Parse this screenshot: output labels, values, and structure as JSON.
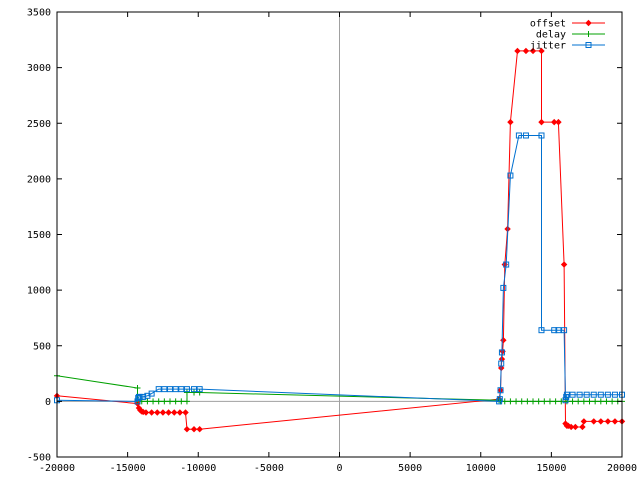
{
  "chart_data": {
    "type": "line",
    "title": "",
    "xlabel": "",
    "ylabel": "",
    "xlim": [
      -20000,
      20000
    ],
    "ylim": [
      -500,
      3500
    ],
    "xticks": [
      -20000,
      -15000,
      -10000,
      -5000,
      0,
      5000,
      10000,
      15000,
      20000
    ],
    "yticks": [
      -500,
      0,
      500,
      1000,
      1500,
      2000,
      2500,
      3000,
      3500
    ],
    "grid": false,
    "zero_lines": true,
    "legend_position": "top-right",
    "series": [
      {
        "name": "offset",
        "color": "#ff0000",
        "marker": "diamond",
        "points": [
          [
            -20000,
            50
          ],
          [
            -14300,
            -20
          ],
          [
            -14200,
            -60
          ],
          [
            -14100,
            -80
          ],
          [
            -14000,
            -90
          ],
          [
            -13900,
            -95
          ],
          [
            -13700,
            -100
          ],
          [
            -13300,
            -100
          ],
          [
            -12900,
            -100
          ],
          [
            -12500,
            -100
          ],
          [
            -12100,
            -100
          ],
          [
            -11700,
            -100
          ],
          [
            -11300,
            -100
          ],
          [
            -10900,
            -100
          ],
          [
            -10800,
            -250
          ],
          [
            -10300,
            -250
          ],
          [
            -9900,
            -250
          ],
          [
            11300,
            20
          ],
          [
            11400,
            100
          ],
          [
            11450,
            300
          ],
          [
            11500,
            380
          ],
          [
            11550,
            450
          ],
          [
            11600,
            550
          ],
          [
            11700,
            1230
          ],
          [
            11900,
            1550
          ],
          [
            12100,
            2510
          ],
          [
            12600,
            3150
          ],
          [
            13200,
            3150
          ],
          [
            13700,
            3150
          ],
          [
            14300,
            3150
          ],
          [
            14300,
            2510
          ],
          [
            15200,
            2510
          ],
          [
            15500,
            2510
          ],
          [
            15900,
            1230
          ],
          [
            16000,
            -200
          ],
          [
            16100,
            -220
          ],
          [
            16200,
            -220
          ],
          [
            16400,
            -230
          ],
          [
            16700,
            -230
          ],
          [
            17200,
            -230
          ],
          [
            17300,
            -180
          ],
          [
            18000,
            -180
          ],
          [
            18500,
            -180
          ],
          [
            19000,
            -180
          ],
          [
            19500,
            -180
          ],
          [
            20000,
            -180
          ]
        ]
      },
      {
        "name": "delay",
        "color": "#00a000",
        "marker": "plus",
        "points": [
          [
            -20000,
            230
          ],
          [
            -14300,
            120
          ],
          [
            -14300,
            10
          ],
          [
            -14000,
            0
          ],
          [
            -13600,
            0
          ],
          [
            -13200,
            0
          ],
          [
            -12800,
            0
          ],
          [
            -12400,
            0
          ],
          [
            -12000,
            0
          ],
          [
            -11600,
            0
          ],
          [
            -11200,
            0
          ],
          [
            -10800,
            0
          ],
          [
            -10800,
            80
          ],
          [
            -10300,
            80
          ],
          [
            -9900,
            80
          ],
          [
            11300,
            10
          ],
          [
            11400,
            0
          ],
          [
            11700,
            0
          ],
          [
            12100,
            0
          ],
          [
            12500,
            0
          ],
          [
            12900,
            0
          ],
          [
            13300,
            0
          ],
          [
            13700,
            0
          ],
          [
            14100,
            0
          ],
          [
            14500,
            0
          ],
          [
            14900,
            0
          ],
          [
            15300,
            0
          ],
          [
            15700,
            0
          ],
          [
            16100,
            0
          ],
          [
            16500,
            0
          ],
          [
            16900,
            0
          ],
          [
            17300,
            0
          ],
          [
            17700,
            0
          ],
          [
            18100,
            0
          ],
          [
            18500,
            0
          ],
          [
            18900,
            0
          ],
          [
            19300,
            0
          ],
          [
            19700,
            0
          ],
          [
            20000,
            0
          ]
        ]
      },
      {
        "name": "jitter",
        "color": "#0070d0",
        "marker": "square",
        "points": [
          [
            -20000,
            10
          ],
          [
            -14300,
            0
          ],
          [
            -14250,
            30
          ],
          [
            -14200,
            40
          ],
          [
            -14100,
            40
          ],
          [
            -13900,
            40
          ],
          [
            -13600,
            50
          ],
          [
            -13300,
            70
          ],
          [
            -12800,
            110
          ],
          [
            -12400,
            110
          ],
          [
            -12000,
            110
          ],
          [
            -11600,
            110
          ],
          [
            -11200,
            110
          ],
          [
            -10800,
            110
          ],
          [
            -10300,
            110
          ],
          [
            -9900,
            110
          ],
          [
            11300,
            0
          ],
          [
            11350,
            20
          ],
          [
            11400,
            100
          ],
          [
            11450,
            340
          ],
          [
            11500,
            440
          ],
          [
            11600,
            1020
          ],
          [
            11800,
            1230
          ],
          [
            12100,
            2030
          ],
          [
            12700,
            2390
          ],
          [
            13200,
            2390
          ],
          [
            14300,
            2390
          ],
          [
            14300,
            640
          ],
          [
            15200,
            640
          ],
          [
            15500,
            640
          ],
          [
            15900,
            640
          ],
          [
            16000,
            10
          ],
          [
            16050,
            40
          ],
          [
            16100,
            60
          ],
          [
            16500,
            60
          ],
          [
            17000,
            60
          ],
          [
            17500,
            60
          ],
          [
            18000,
            60
          ],
          [
            18500,
            60
          ],
          [
            19000,
            60
          ],
          [
            19500,
            60
          ],
          [
            20000,
            60
          ]
        ]
      }
    ]
  }
}
